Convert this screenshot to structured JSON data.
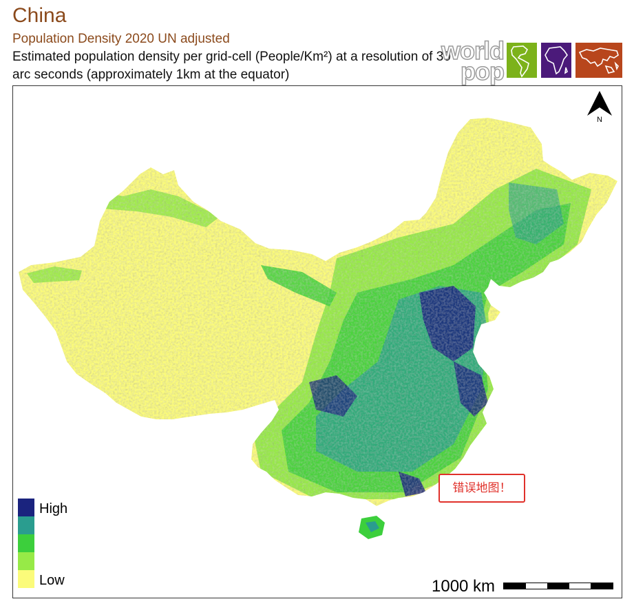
{
  "header": {
    "title": "China",
    "subtitle": "Population Density 2020 UN adjusted",
    "description": "Estimated population density per grid-cell (People/Km²) at a resolution of 30 arc seconds (approximately 1km at the equator)"
  },
  "logo": {
    "line1": "world",
    "line2": "pop",
    "panels": [
      {
        "name": "americas-panel",
        "color": "#7cb21a"
      },
      {
        "name": "africa-panel",
        "color": "#4b1a7a"
      },
      {
        "name": "asia-panel",
        "color": "#b8461c"
      }
    ]
  },
  "north_arrow": {
    "label": "N"
  },
  "legend": {
    "high_label": "High",
    "low_label": "Low",
    "classes": [
      {
        "color": "#1a237e"
      },
      {
        "color": "#2a9d8f"
      },
      {
        "color": "#3ccf3c"
      },
      {
        "color": "#97ea47"
      },
      {
        "color": "#fbfb7a"
      }
    ]
  },
  "scale_bar": {
    "label": "1000 km"
  },
  "overlay": {
    "stamp_text": "错误地图！"
  },
  "colors": {
    "title": "#8b4a1c",
    "low": "#fbfb7a",
    "high": "#1a237e"
  }
}
